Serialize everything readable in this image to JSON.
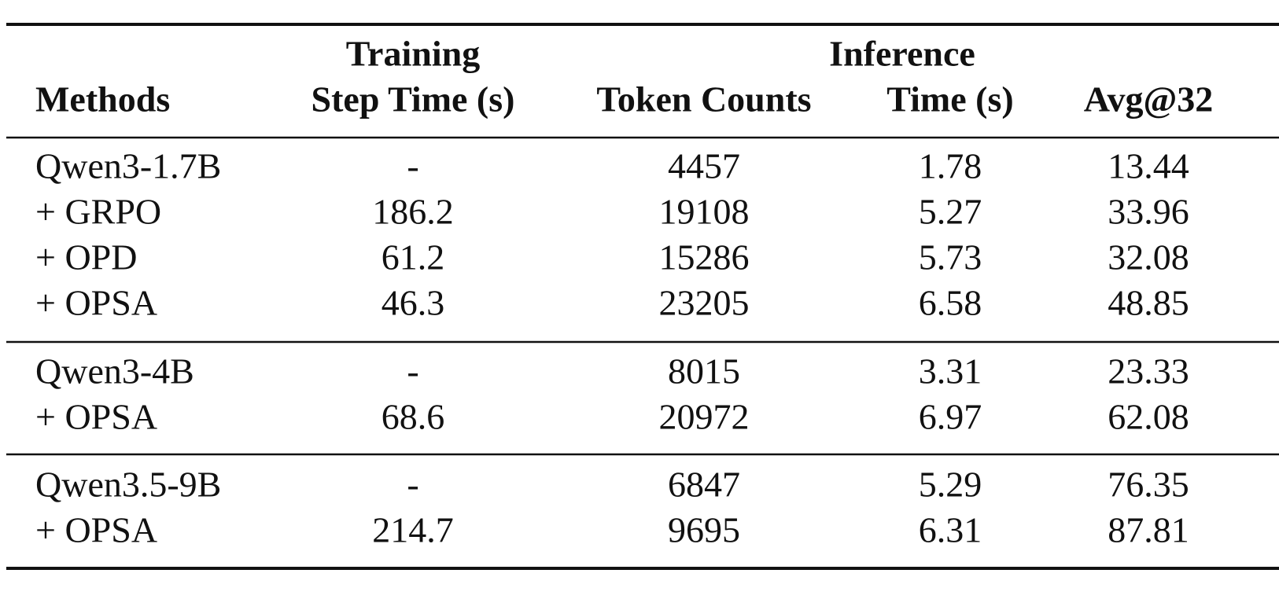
{
  "table": {
    "header": {
      "group_row": [
        "Training",
        "Inference"
      ],
      "columns": [
        "Methods",
        "Step Time (s)",
        "Token Counts",
        "Time (s)",
        "Avg@32"
      ]
    },
    "groups": [
      {
        "rows": [
          [
            "Qwen3-1.7B",
            "-",
            "4457",
            "1.78",
            "13.44"
          ],
          [
            "+ GRPO",
            "186.2",
            "19108",
            "5.27",
            "33.96"
          ],
          [
            "+ OPD",
            "61.2",
            "15286",
            "5.73",
            "32.08"
          ],
          [
            "+ OPSA",
            "46.3",
            "23205",
            "6.58",
            "48.85"
          ]
        ]
      },
      {
        "rows": [
          [
            "Qwen3-4B",
            "-",
            "8015",
            "3.31",
            "23.33"
          ],
          [
            "+ OPSA",
            "68.6",
            "20972",
            "6.97",
            "62.08"
          ]
        ]
      },
      {
        "rows": [
          [
            "Qwen3.5-9B",
            "-",
            "6847",
            "5.29",
            "76.35"
          ],
          [
            "+ OPSA",
            "214.7",
            "9695",
            "6.31",
            "87.81"
          ]
        ]
      }
    ]
  }
}
